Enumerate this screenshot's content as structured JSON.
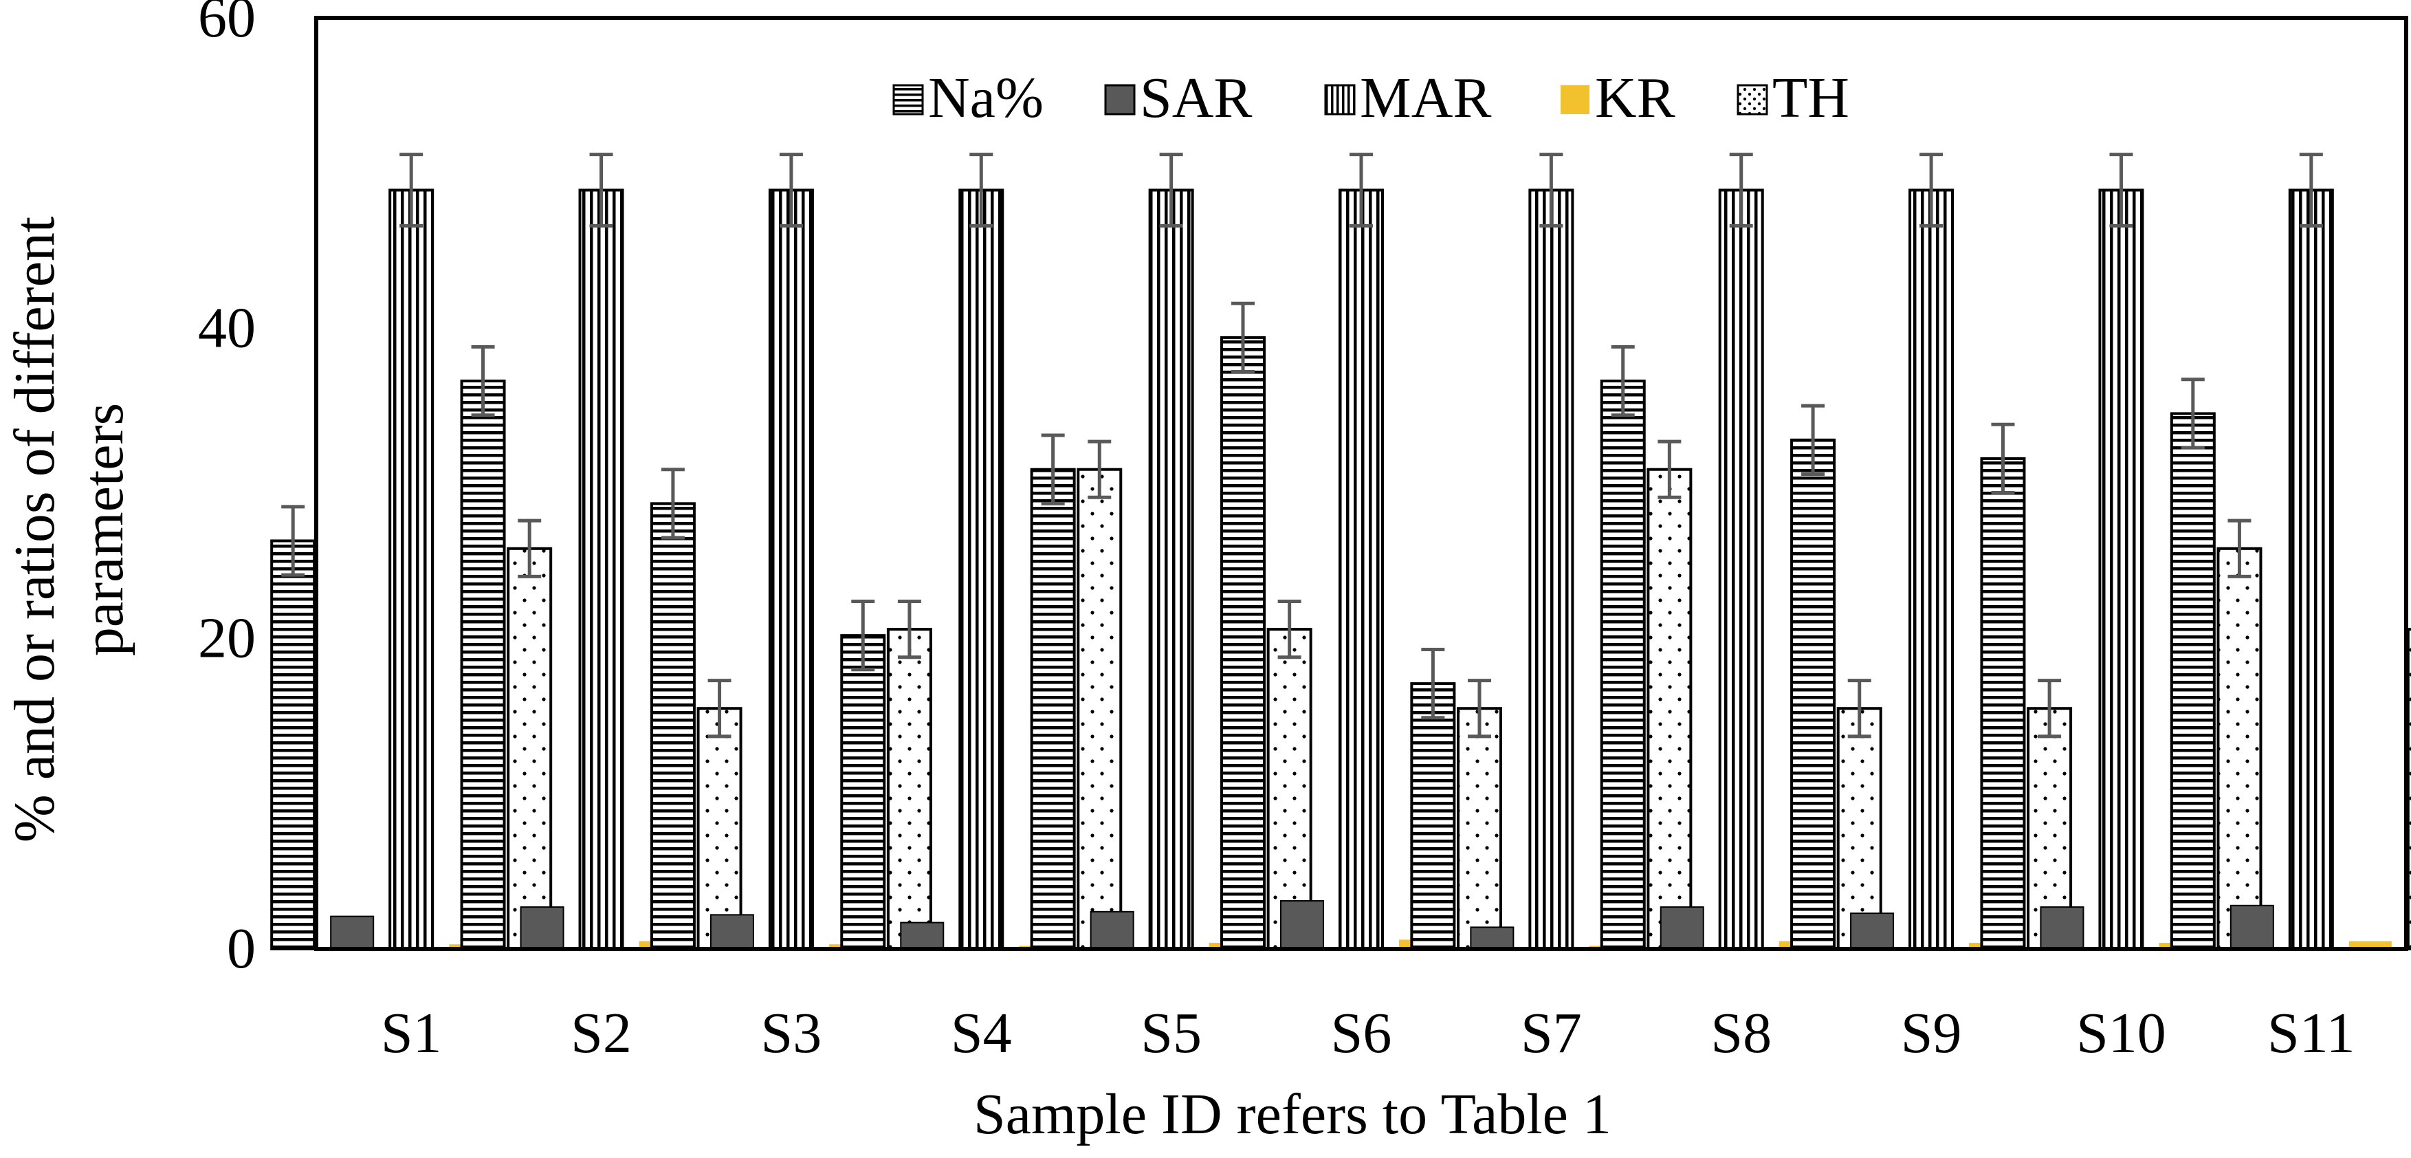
{
  "chart_data": {
    "type": "bar",
    "title": "",
    "xlabel": "Sample ID refers to Table 1",
    "ylabel_lines": [
      "% and or ratios of different",
      "parameters"
    ],
    "ylim": [
      0,
      60
    ],
    "yticks": [
      0,
      20,
      40,
      60
    ],
    "ytick_labels": [
      "0",
      "20",
      "40",
      "60"
    ],
    "grid": false,
    "legend_position": "top-center",
    "categories": [
      "S1",
      "S2",
      "S3",
      "S4",
      "S5",
      "S6",
      "S7",
      "S8",
      "S9",
      "S10",
      "S11"
    ],
    "series": [
      {
        "name": "Na%",
        "pattern": "horizontal-lines",
        "color": "#000000",
        "values": [
          26.3,
          36.6,
          28.7,
          20.2,
          30.9,
          39.4,
          17.1,
          36.6,
          32.8,
          31.6,
          34.5
        ],
        "errors": [
          2.2,
          2.2,
          2.2,
          2.2,
          2.2,
          2.2,
          2.2,
          2.2,
          2.2,
          2.2,
          2.2
        ]
      },
      {
        "name": "SAR",
        "pattern": "solid",
        "color": "#595959",
        "values": [
          2.1,
          2.7,
          2.2,
          1.7,
          2.4,
          3.1,
          1.4,
          2.7,
          2.3,
          2.7,
          2.8
        ],
        "errors": [
          0,
          0,
          0,
          0,
          0,
          0,
          0,
          0,
          0,
          0,
          0
        ]
      },
      {
        "name": "MAR",
        "pattern": "vertical-lines",
        "color": "#000000",
        "values": [
          48.9,
          48.9,
          48.9,
          48.9,
          48.9,
          48.9,
          48.9,
          48.9,
          48.9,
          48.9,
          48.9
        ],
        "errors": [
          2.3,
          2.3,
          2.3,
          2.3,
          2.3,
          2.3,
          2.3,
          2.3,
          2.3,
          2.3,
          2.3
        ]
      },
      {
        "name": "KR",
        "pattern": "solid",
        "color": "#F2C12E",
        "values": [
          0.3,
          0.5,
          0.3,
          0.2,
          0.4,
          0.6,
          0.2,
          0.5,
          0.4,
          0.4,
          0.5
        ],
        "errors": [
          0,
          0,
          0,
          0,
          0,
          0,
          0,
          0,
          0,
          0,
          0
        ]
      },
      {
        "name": "TH",
        "pattern": "dots",
        "color": "#000000",
        "values": [
          25.8,
          15.5,
          20.6,
          30.9,
          20.6,
          15.5,
          30.9,
          15.5,
          15.5,
          25.8,
          20.6
        ],
        "errors": [
          1.8,
          1.8,
          1.8,
          1.8,
          1.8,
          1.8,
          1.8,
          1.8,
          1.8,
          1.8,
          1.8
        ]
      }
    ],
    "colors": {
      "axis": "#000000",
      "error_bar": "#595959",
      "background": "#ffffff"
    }
  }
}
